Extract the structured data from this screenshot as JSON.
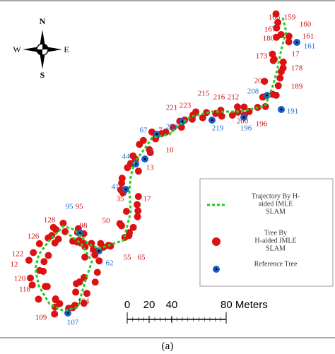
{
  "compass": {
    "north": "N",
    "south": "S",
    "west": "W",
    "east": "E"
  },
  "estimated_tree_labels": [
    "166",
    "159",
    "160",
    "167",
    "161",
    "180",
    "17",
    "173",
    "178",
    "20",
    "189",
    "215",
    "216",
    "212",
    "223",
    "221",
    "200",
    "196",
    "1",
    "7",
    "10",
    "13",
    "17",
    "35",
    "50",
    "55",
    "65",
    "98",
    "95",
    "128",
    "126",
    "122",
    "12",
    "120",
    "118",
    "109",
    "104",
    "99"
  ],
  "reference_tree_labels": [
    "161",
    "208",
    "191",
    "222",
    "219",
    "196",
    "67",
    "3",
    "44",
    "41",
    "62",
    "107",
    "95"
  ],
  "legend": {
    "trajectory": [
      "Trajectory By H-",
      "aided IMLE",
      "SLAM"
    ],
    "estimated_tree": [
      "Tree By",
      "H-aided IMLE",
      "SLAM"
    ],
    "reference_tree": [
      "Reference Tree"
    ]
  },
  "scale_bar": [
    "0",
    "20",
    "40",
    "80 Meters"
  ],
  "caption": "(a)"
}
